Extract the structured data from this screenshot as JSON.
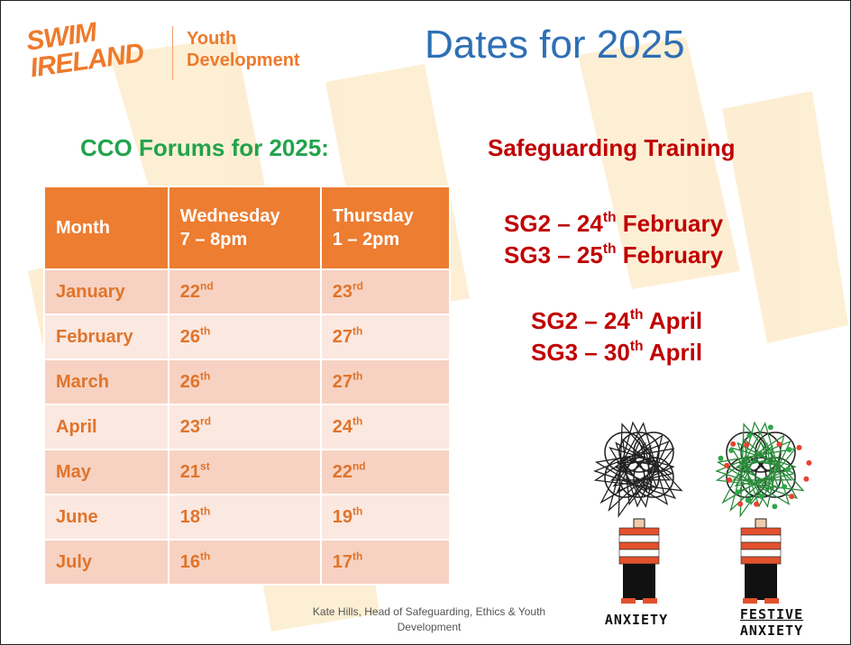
{
  "header": {
    "logo_line1": "SWIM",
    "logo_line2": "IRELAND",
    "subtitle_line1": "Youth",
    "subtitle_line2": "Development",
    "title": "Dates for 2025"
  },
  "forums": {
    "heading": "CCO Forums for 2025:",
    "columns": [
      [
        "Month"
      ],
      [
        "Wednesday",
        "7 – 8pm"
      ],
      [
        "Thursday",
        "1 – 2pm"
      ]
    ],
    "rows": [
      [
        "January",
        {
          "num": "22",
          "sup": "nd"
        },
        {
          "num": "23",
          "sup": "rd"
        }
      ],
      [
        "February",
        {
          "num": "26",
          "sup": "th"
        },
        {
          "num": "27",
          "sup": "th"
        }
      ],
      [
        "March",
        {
          "num": "26",
          "sup": "th"
        },
        {
          "num": "27",
          "sup": "th"
        }
      ],
      [
        "April",
        {
          "num": "23",
          "sup": "rd"
        },
        {
          "num": "24",
          "sup": "th"
        }
      ],
      [
        "May",
        {
          "num": "21",
          "sup": "st"
        },
        {
          "num": "22",
          "sup": "nd"
        }
      ],
      [
        "June",
        {
          "num": "18",
          "sup": "th"
        },
        {
          "num": "19",
          "sup": "th"
        }
      ],
      [
        "July",
        {
          "num": "16",
          "sup": "th"
        },
        {
          "num": "17",
          "sup": "th"
        }
      ]
    ]
  },
  "safeguarding": {
    "heading": "Safeguarding Training",
    "items": [
      {
        "text": "SG2 – 24",
        "sup": "th",
        "rest": " February"
      },
      {
        "text": "SG3 – 25",
        "sup": "th",
        "rest": " February"
      },
      {
        "text": "SG2 – 24",
        "sup": "th",
        "rest": " April"
      },
      {
        "text": "SG3 – 30",
        "sup": "th",
        "rest": " April"
      }
    ]
  },
  "illustration": {
    "left_caption": "ANXIETY",
    "right_caption_line1": "FESTIVE",
    "right_caption_line2": "ANXIETY"
  },
  "footer": "Kate Hills, Head of Safeguarding, Ethics & Youth Development"
}
